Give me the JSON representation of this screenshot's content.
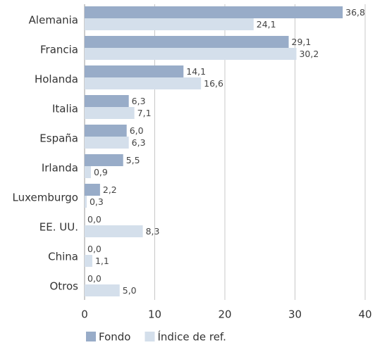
{
  "chart_data": {
    "type": "bar",
    "orientation": "horizontal",
    "categories": [
      "Alemania",
      "Francia",
      "Holanda",
      "Italia",
      "España",
      "Irlanda",
      "Luxemburgo",
      "EE. UU.",
      "China",
      "Otros"
    ],
    "series": [
      {
        "name": "Fondo",
        "color": "#98acc8",
        "values": [
          36.8,
          29.1,
          14.1,
          6.3,
          6.0,
          5.5,
          2.2,
          0.0,
          0.0,
          0.0
        ],
        "labels": [
          "36,8",
          "29,1",
          "14,1",
          "6,3",
          "6,0",
          "5,5",
          "2,2",
          "0,0",
          "0,0",
          "0,0"
        ]
      },
      {
        "name": "Índice de ref.",
        "color": "#d4dfeb",
        "values": [
          24.1,
          30.2,
          16.6,
          7.1,
          6.3,
          0.9,
          0.3,
          8.3,
          1.1,
          5.0
        ],
        "labels": [
          "24,1",
          "30,2",
          "16,6",
          "7,1",
          "6,3",
          "0,9",
          "0,3",
          "8,3",
          "1,1",
          "5,0"
        ]
      }
    ],
    "xlim": [
      0,
      40
    ],
    "xticks": [
      0,
      10,
      20,
      30,
      40
    ],
    "xtick_labels": [
      "0",
      "10",
      "20",
      "30",
      "40"
    ],
    "grid": true,
    "legend_position": "bottom-left"
  }
}
